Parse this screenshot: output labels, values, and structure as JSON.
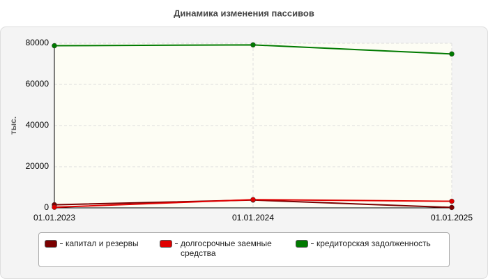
{
  "chart_data": {
    "type": "line",
    "title": "Динамика изменения пассивов",
    "y_label": "тыс.",
    "categories": [
      "01.01.2023",
      "01.01.2024",
      "01.01.2025"
    ],
    "series": [
      {
        "name": "капитал и резервы",
        "color": "#7a0000",
        "values": [
          1500,
          3800,
          200
        ]
      },
      {
        "name": "долгосрочные заемные средства",
        "color": "#e00000",
        "values": [
          300,
          4000,
          3200
        ]
      },
      {
        "name": "кредиторская задолженность",
        "color": "#007a00",
        "values": [
          78800,
          79200,
          74800
        ]
      }
    ],
    "ylim": [
      0,
      80000
    ],
    "yticks": [
      0,
      20000,
      40000,
      60000,
      80000
    ],
    "grid": true
  }
}
